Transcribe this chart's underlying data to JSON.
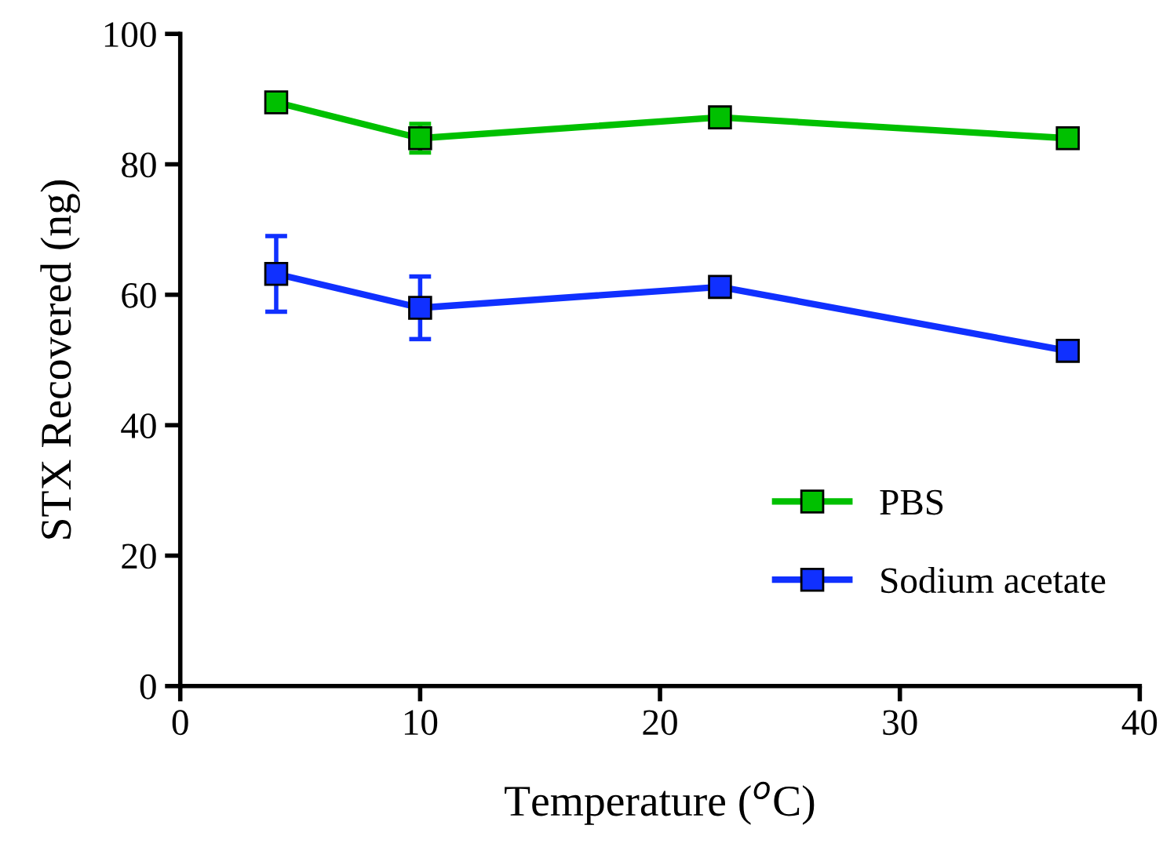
{
  "chart_data": {
    "type": "line",
    "xlabel": "Temperature ($^{o}$C)",
    "ylabel": "STX Recovered (ng)",
    "x": [
      4,
      10,
      22.5,
      37
    ],
    "series": [
      {
        "name": "PBS",
        "color": "#00c000",
        "values": [
          89.5,
          84,
          87.2,
          84
        ],
        "errors": [
          null,
          2.2,
          null,
          null
        ]
      },
      {
        "name": "Sodium acetate",
        "color": "#1030ff",
        "values": [
          63.2,
          58,
          61.2,
          51.4
        ],
        "errors": [
          5.8,
          4.8,
          null,
          null
        ]
      }
    ],
    "xlim": [
      0,
      40
    ],
    "xticks": [
      0,
      10,
      20,
      30,
      40
    ],
    "ylim": [
      0,
      100
    ],
    "yticks": [
      0,
      20,
      40,
      60,
      80,
      100
    ],
    "marker": "square",
    "line_style": "solid",
    "grid": false,
    "legend": "bottom right"
  }
}
